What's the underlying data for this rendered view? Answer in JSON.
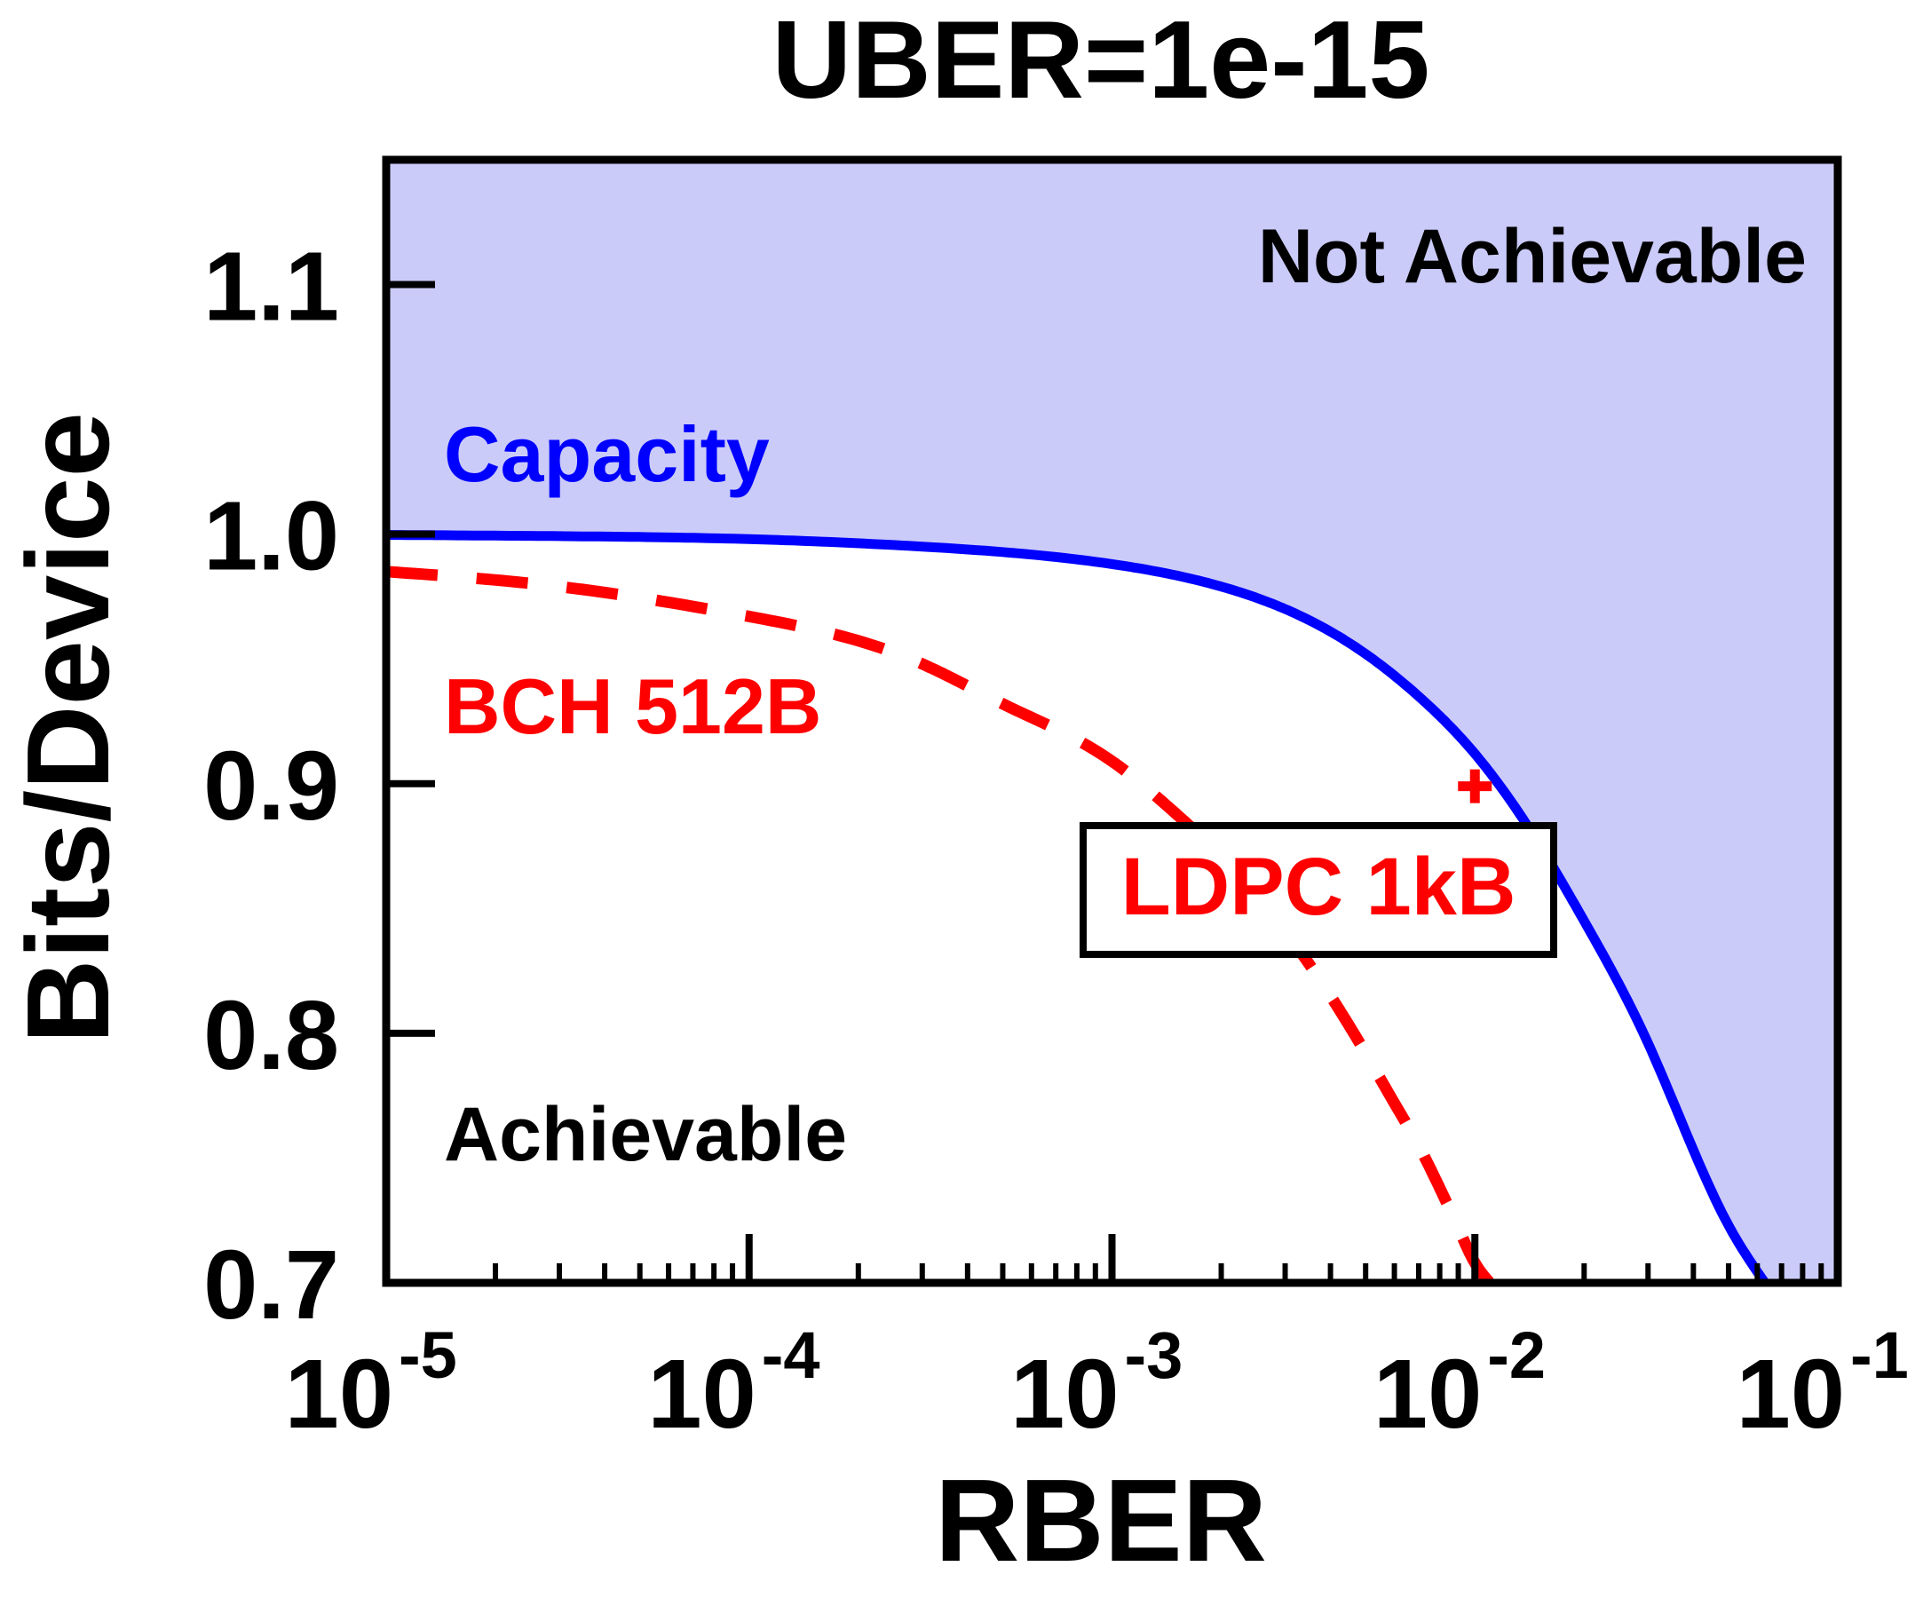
{
  "chart_data": {
    "type": "line",
    "title": "UBER=1e-15",
    "xlabel": "RBER",
    "ylabel": "Bits/Device",
    "xscale": "log",
    "xlim": [
      1e-05,
      0.1
    ],
    "ylim": [
      0.7,
      1.15
    ],
    "xticks": [
      {
        "value": 1e-05,
        "base": "10",
        "exp": "-5"
      },
      {
        "value": 0.0001,
        "base": "10",
        "exp": "-4"
      },
      {
        "value": 0.001,
        "base": "10",
        "exp": "-3"
      },
      {
        "value": 0.01,
        "base": "10",
        "exp": "-2"
      },
      {
        "value": 0.1,
        "base": "10",
        "exp": "-1"
      }
    ],
    "yticks": [
      {
        "value": 0.7,
        "label": "0.7"
      },
      {
        "value": 0.8,
        "label": "0.8"
      },
      {
        "value": 0.9,
        "label": "0.9"
      },
      {
        "value": 1.0,
        "label": "1.0"
      },
      {
        "value": 1.1,
        "label": "1.1"
      }
    ],
    "grid": false,
    "series": [
      {
        "name": "Capacity",
        "color": "#0000ff",
        "style": "solid",
        "x": [
          1e-05,
          3e-05,
          0.0001,
          0.0003,
          0.001,
          0.002,
          0.003,
          0.005,
          0.007,
          0.01,
          0.015,
          0.02,
          0.03,
          0.05,
          0.063
        ],
        "y": [
          0.9997,
          0.9992,
          0.998,
          0.995,
          0.988,
          0.979,
          0.97,
          0.952,
          0.935,
          0.912,
          0.876,
          0.845,
          0.796,
          0.723,
          0.7
        ]
      },
      {
        "name": "BCH 512B",
        "color": "#ff0000",
        "style": "dashed",
        "x": [
          1e-05,
          3e-05,
          0.0001,
          0.0003,
          0.0005,
          0.001,
          0.0015,
          0.002,
          0.003,
          0.004,
          0.005,
          0.006,
          0.007,
          0.008,
          0.009,
          0.01,
          0.011
        ],
        "y": [
          0.985,
          0.979,
          0.967,
          0.948,
          0.932,
          0.909,
          0.888,
          0.871,
          0.841,
          0.815,
          0.792,
          0.772,
          0.755,
          0.738,
          0.722,
          0.708,
          0.7
        ]
      }
    ],
    "points": [
      {
        "name": "LDPC 1kB",
        "x": 0.01,
        "y": 0.899,
        "color": "#ff0000",
        "marker": "plus"
      }
    ],
    "region_fill": "#cbcbf9",
    "annotations": [
      {
        "text": "Not Achievable",
        "color": "#000000"
      },
      {
        "text": "Capacity",
        "color": "#0000ff"
      },
      {
        "text": "BCH 512B",
        "color": "#ff0000"
      },
      {
        "text": "LDPC 1kB",
        "color": "#ff0000",
        "boxed": true
      },
      {
        "text": "Achievable",
        "color": "#000000"
      }
    ]
  }
}
